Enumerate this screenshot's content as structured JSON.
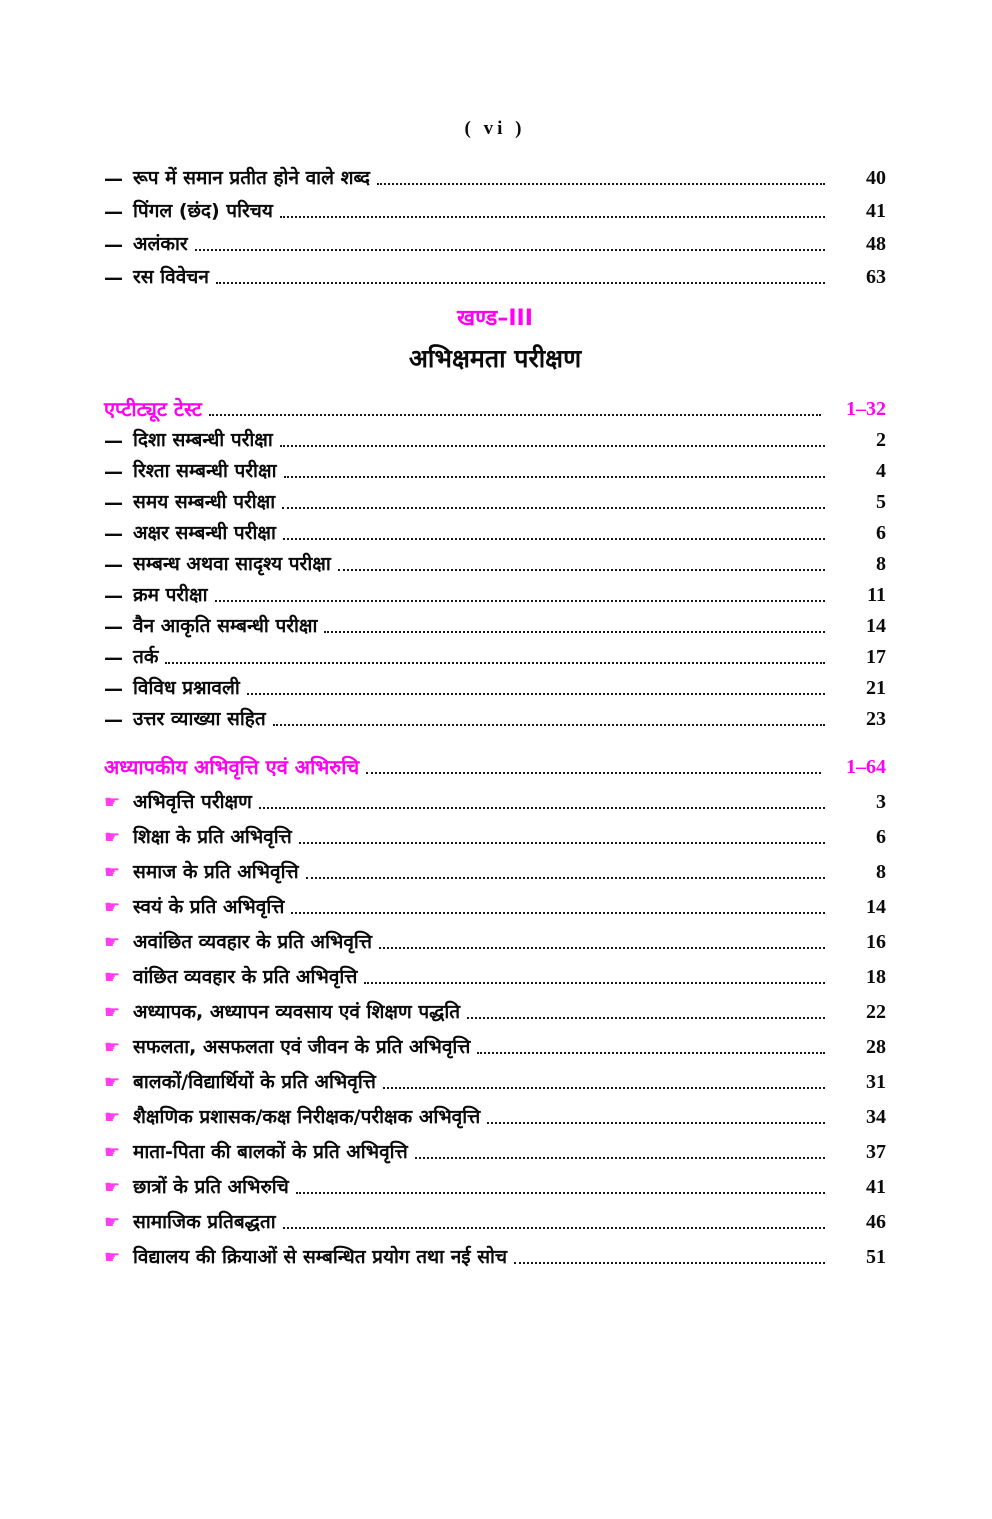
{
  "page_header": "( vi )",
  "colors": {
    "accent_magenta": "#FF00F2",
    "hand_magenta": "#FF3CF0",
    "text_black": "#0B0B0B",
    "leader_dots": "#161616"
  },
  "markers": {
    "dash": "—",
    "hand": "☛"
  },
  "intro": {
    "items": [
      {
        "label": "रूप में समान प्रतीत होने वाले शब्द",
        "page": "40"
      },
      {
        "label": "पिंगल (छंद) परिचय",
        "page": "41"
      },
      {
        "label": "अलंकार",
        "page": "48"
      },
      {
        "label": "रस विवेचन",
        "page": "63"
      }
    ]
  },
  "section": {
    "kicker": "खण्ड–III",
    "title": "अभिक्षमता परीक्षण"
  },
  "groups": [
    {
      "heading": "एप्टीट्यूट टेस्ट",
      "page_range": "1–32",
      "items": [
        {
          "label": "दिशा सम्बन्धी परीक्षा",
          "page": "2"
        },
        {
          "label": "रिश्ता सम्बन्धी परीक्षा",
          "page": "4"
        },
        {
          "label": "समय सम्बन्धी परीक्षा",
          "page": "5"
        },
        {
          "label": "अक्षर सम्बन्धी परीक्षा",
          "page": "6"
        },
        {
          "label": "सम्बन्ध अथवा सादृश्य परीक्षा",
          "page": "8"
        },
        {
          "label": "क्रम परीक्षा",
          "page": "11"
        },
        {
          "label": "वैन आकृति सम्बन्धी परीक्षा",
          "page": "14"
        },
        {
          "label": "तर्क",
          "page": "17"
        },
        {
          "label": "विविध प्रश्नावली",
          "page": "21"
        },
        {
          "label": "उत्तर व्याख्या सहित",
          "page": "23"
        }
      ]
    },
    {
      "heading": "अध्यापकीय अभिवृत्ति एवं अभिरुचि",
      "page_range": "1–64",
      "items": [
        {
          "label": "अभिवृत्ति परीक्षण",
          "page": "3"
        },
        {
          "label": "शिक्षा के प्रति अभिवृत्ति",
          "page": "6"
        },
        {
          "label": "समाज के प्रति अभिवृत्ति",
          "page": "8"
        },
        {
          "label": "स्वयं के प्रति अभिवृत्ति",
          "page": "14"
        },
        {
          "label": "अवांछित व्यवहार के प्रति अभिवृत्ति",
          "page": "16"
        },
        {
          "label": "वांछित व्यवहार के प्रति अभिवृत्ति",
          "page": "18"
        },
        {
          "label": "अध्यापक, अध्यापन व्यवसाय एवं शिक्षण पद्धति",
          "page": "22"
        },
        {
          "label": "सफलता, असफलता एवं जीवन के प्रति अभिवृत्ति",
          "page": "28"
        },
        {
          "label": "बालकों/विद्यार्थियों के प्रति अभिवृत्ति",
          "page": "31"
        },
        {
          "label": "शैक्षणिक प्रशासक/कक्ष निरीक्षक/परीक्षक अभिवृत्ति",
          "page": "34"
        },
        {
          "label": "माता-पिता की बालकों के प्रति अभिवृत्ति",
          "page": "37"
        },
        {
          "label": "छात्रों के प्रति अभिरुचि",
          "page": "41"
        },
        {
          "label": "सामाजिक प्रतिबद्धता",
          "page": "46"
        },
        {
          "label": "विद्यालय की क्रियाओं से सम्बन्धित प्रयोग तथा नई सोच",
          "page": "51"
        }
      ]
    }
  ]
}
